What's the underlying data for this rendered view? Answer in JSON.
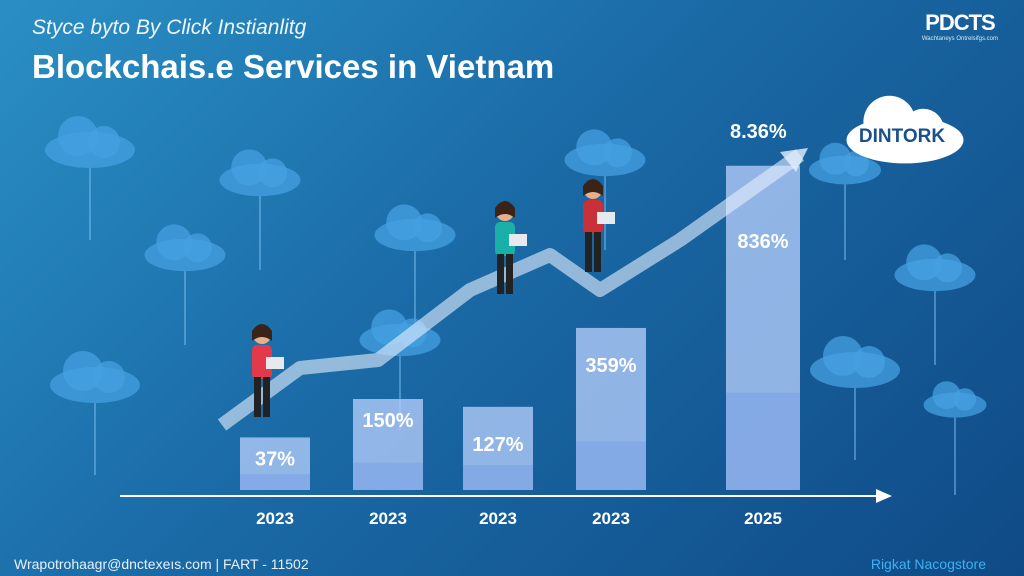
{
  "header": {
    "subtitle": "Styce byto By Click Instianlitg",
    "title": "Blockchais.e Services in Vietnam"
  },
  "logo": {
    "text": "PDCTS",
    "tagline": "Wachtaneys Ontrelsifgs.com"
  },
  "cloud_badge": "DINTORK",
  "footer": {
    "left": "Wrapotrohaagr@dnctexeıs.com  |  FART - 11502",
    "right": "Rigkat Nacogstore"
  },
  "colors": {
    "background": "#1a6aa6",
    "bar": "#a9c4f0",
    "accent": "#3fb0f0"
  },
  "chart_data": {
    "type": "bar",
    "categories": [
      "2023",
      "2023",
      "2023",
      "2023",
      "2025"
    ],
    "values": [
      37,
      150,
      127,
      359,
      836
    ],
    "data_labels": [
      "37%",
      "150%",
      "127%",
      "359%",
      "836%"
    ],
    "trend_annotation": "8.36%",
    "title": "",
    "xlabel": "",
    "ylabel": ""
  }
}
